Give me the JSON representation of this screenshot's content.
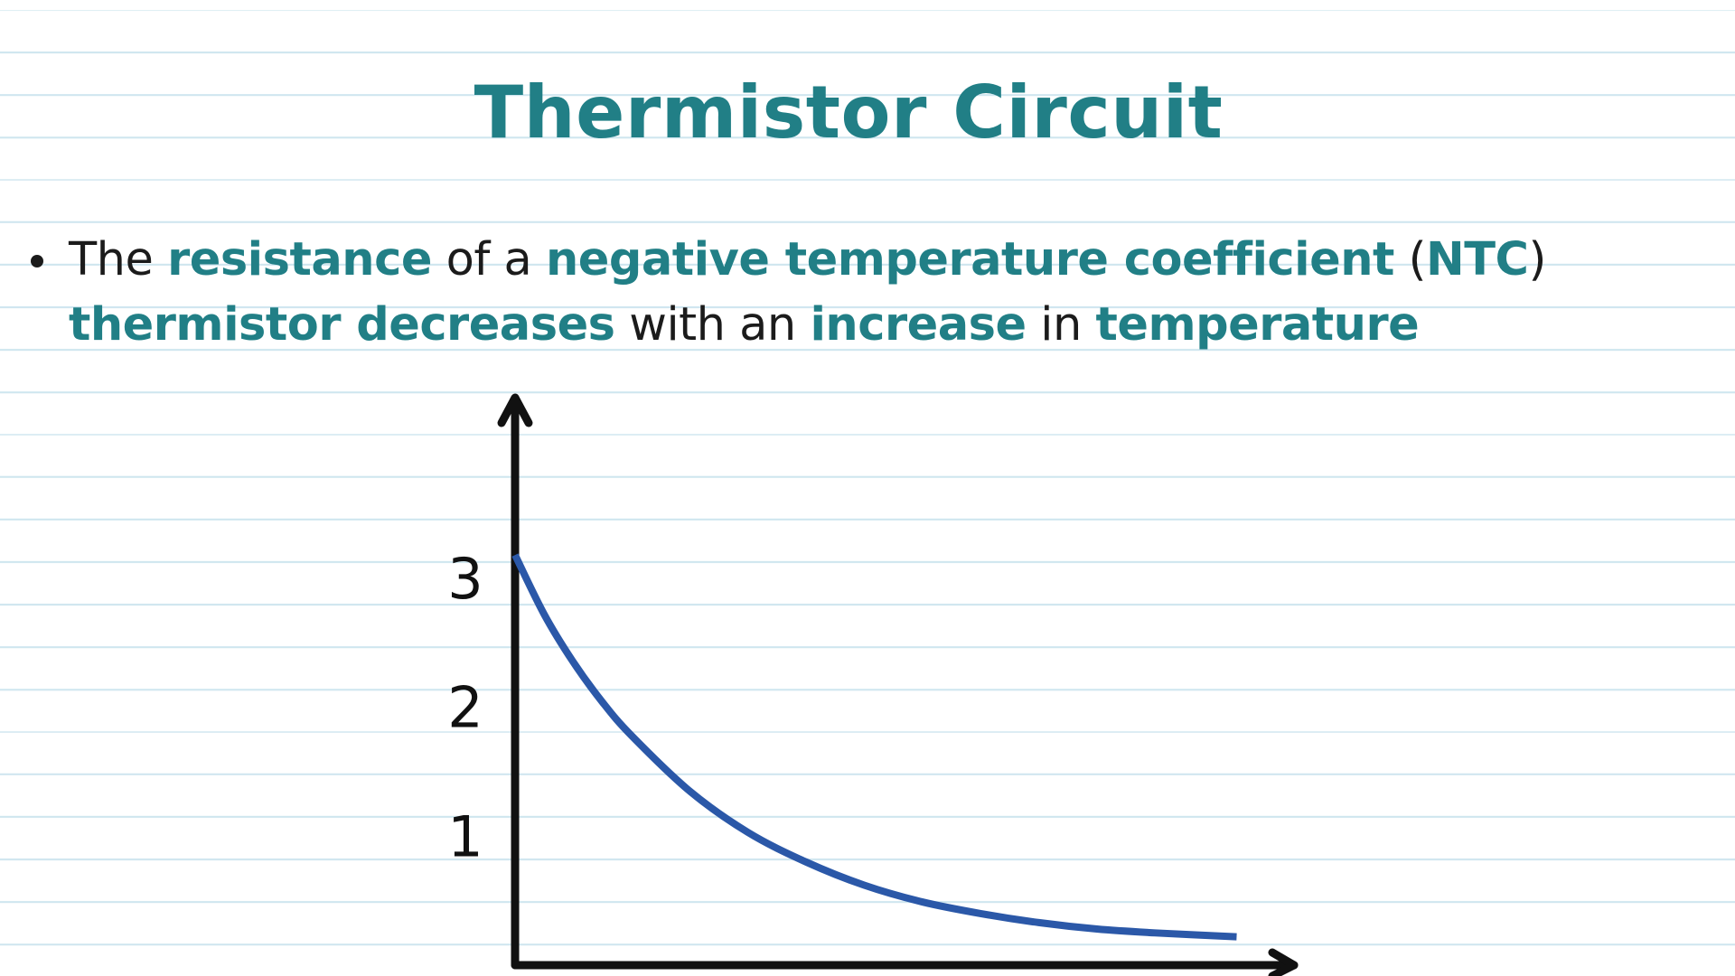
{
  "title": "Thermistor Circuit",
  "bullet": {
    "segments": [
      {
        "text": "The ",
        "highlight": false
      },
      {
        "text": "resistance",
        "highlight": true
      },
      {
        "text": " of a ",
        "highlight": false
      },
      {
        "text": "negative temperature coefficient",
        "highlight": true
      },
      {
        "text": " (",
        "highlight": false
      },
      {
        "text": "NTC",
        "highlight": true
      },
      {
        "text": ") ",
        "highlight": false
      },
      {
        "text": "thermistor decreases",
        "highlight": true
      },
      {
        "text": " with an ",
        "highlight": false
      },
      {
        "text": "increase",
        "highlight": true
      },
      {
        "text": " in ",
        "highlight": false
      },
      {
        "text": "temperature",
        "highlight": true
      }
    ]
  },
  "colors": {
    "accent": "#217f86",
    "text": "#1b1b1b",
    "curve": "#2b58a8",
    "axis": "#111111",
    "ruled_line": "#cfe6ef"
  },
  "chart_data": {
    "type": "line",
    "title": "",
    "xlabel": "",
    "ylabel": "",
    "ylim": [
      0,
      4.4
    ],
    "xlim": [
      0,
      6.6
    ],
    "y_ticks": [
      {
        "value": 1,
        "label": "1"
      },
      {
        "value": 2,
        "label": "2"
      },
      {
        "value": 3,
        "label": "3"
      }
    ],
    "grid": false,
    "series": [
      {
        "x": [
          0,
          0.25,
          0.5,
          0.75,
          1,
          1.5,
          2,
          2.5,
          3,
          3.5,
          4,
          4.5,
          5,
          5.5,
          6.2
        ],
        "values": [
          3.18,
          2.72,
          2.35,
          2.04,
          1.78,
          1.35,
          1.03,
          0.8,
          0.62,
          0.49,
          0.4,
          0.33,
          0.28,
          0.25,
          0.22
        ]
      }
    ]
  }
}
